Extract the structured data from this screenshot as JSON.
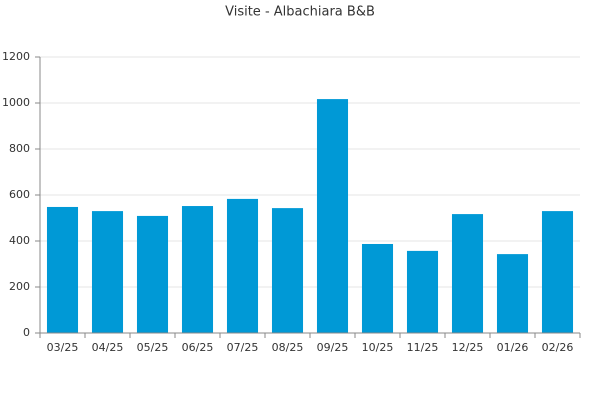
{
  "chart_data": {
    "type": "bar",
    "title": "Visite - Albachiara B&B",
    "categories": [
      "03/25",
      "04/25",
      "05/25",
      "06/25",
      "07/25",
      "08/25",
      "09/25",
      "10/25",
      "11/25",
      "12/25",
      "01/26",
      "02/26"
    ],
    "values": [
      548,
      530,
      509,
      552,
      583,
      543,
      1017,
      387,
      357,
      517,
      343,
      530
    ],
    "color": "#0099d6",
    "ylim": [
      0,
      1200
    ],
    "yticks": [
      0,
      200,
      400,
      600,
      800,
      1000,
      1200
    ],
    "grid": true
  }
}
